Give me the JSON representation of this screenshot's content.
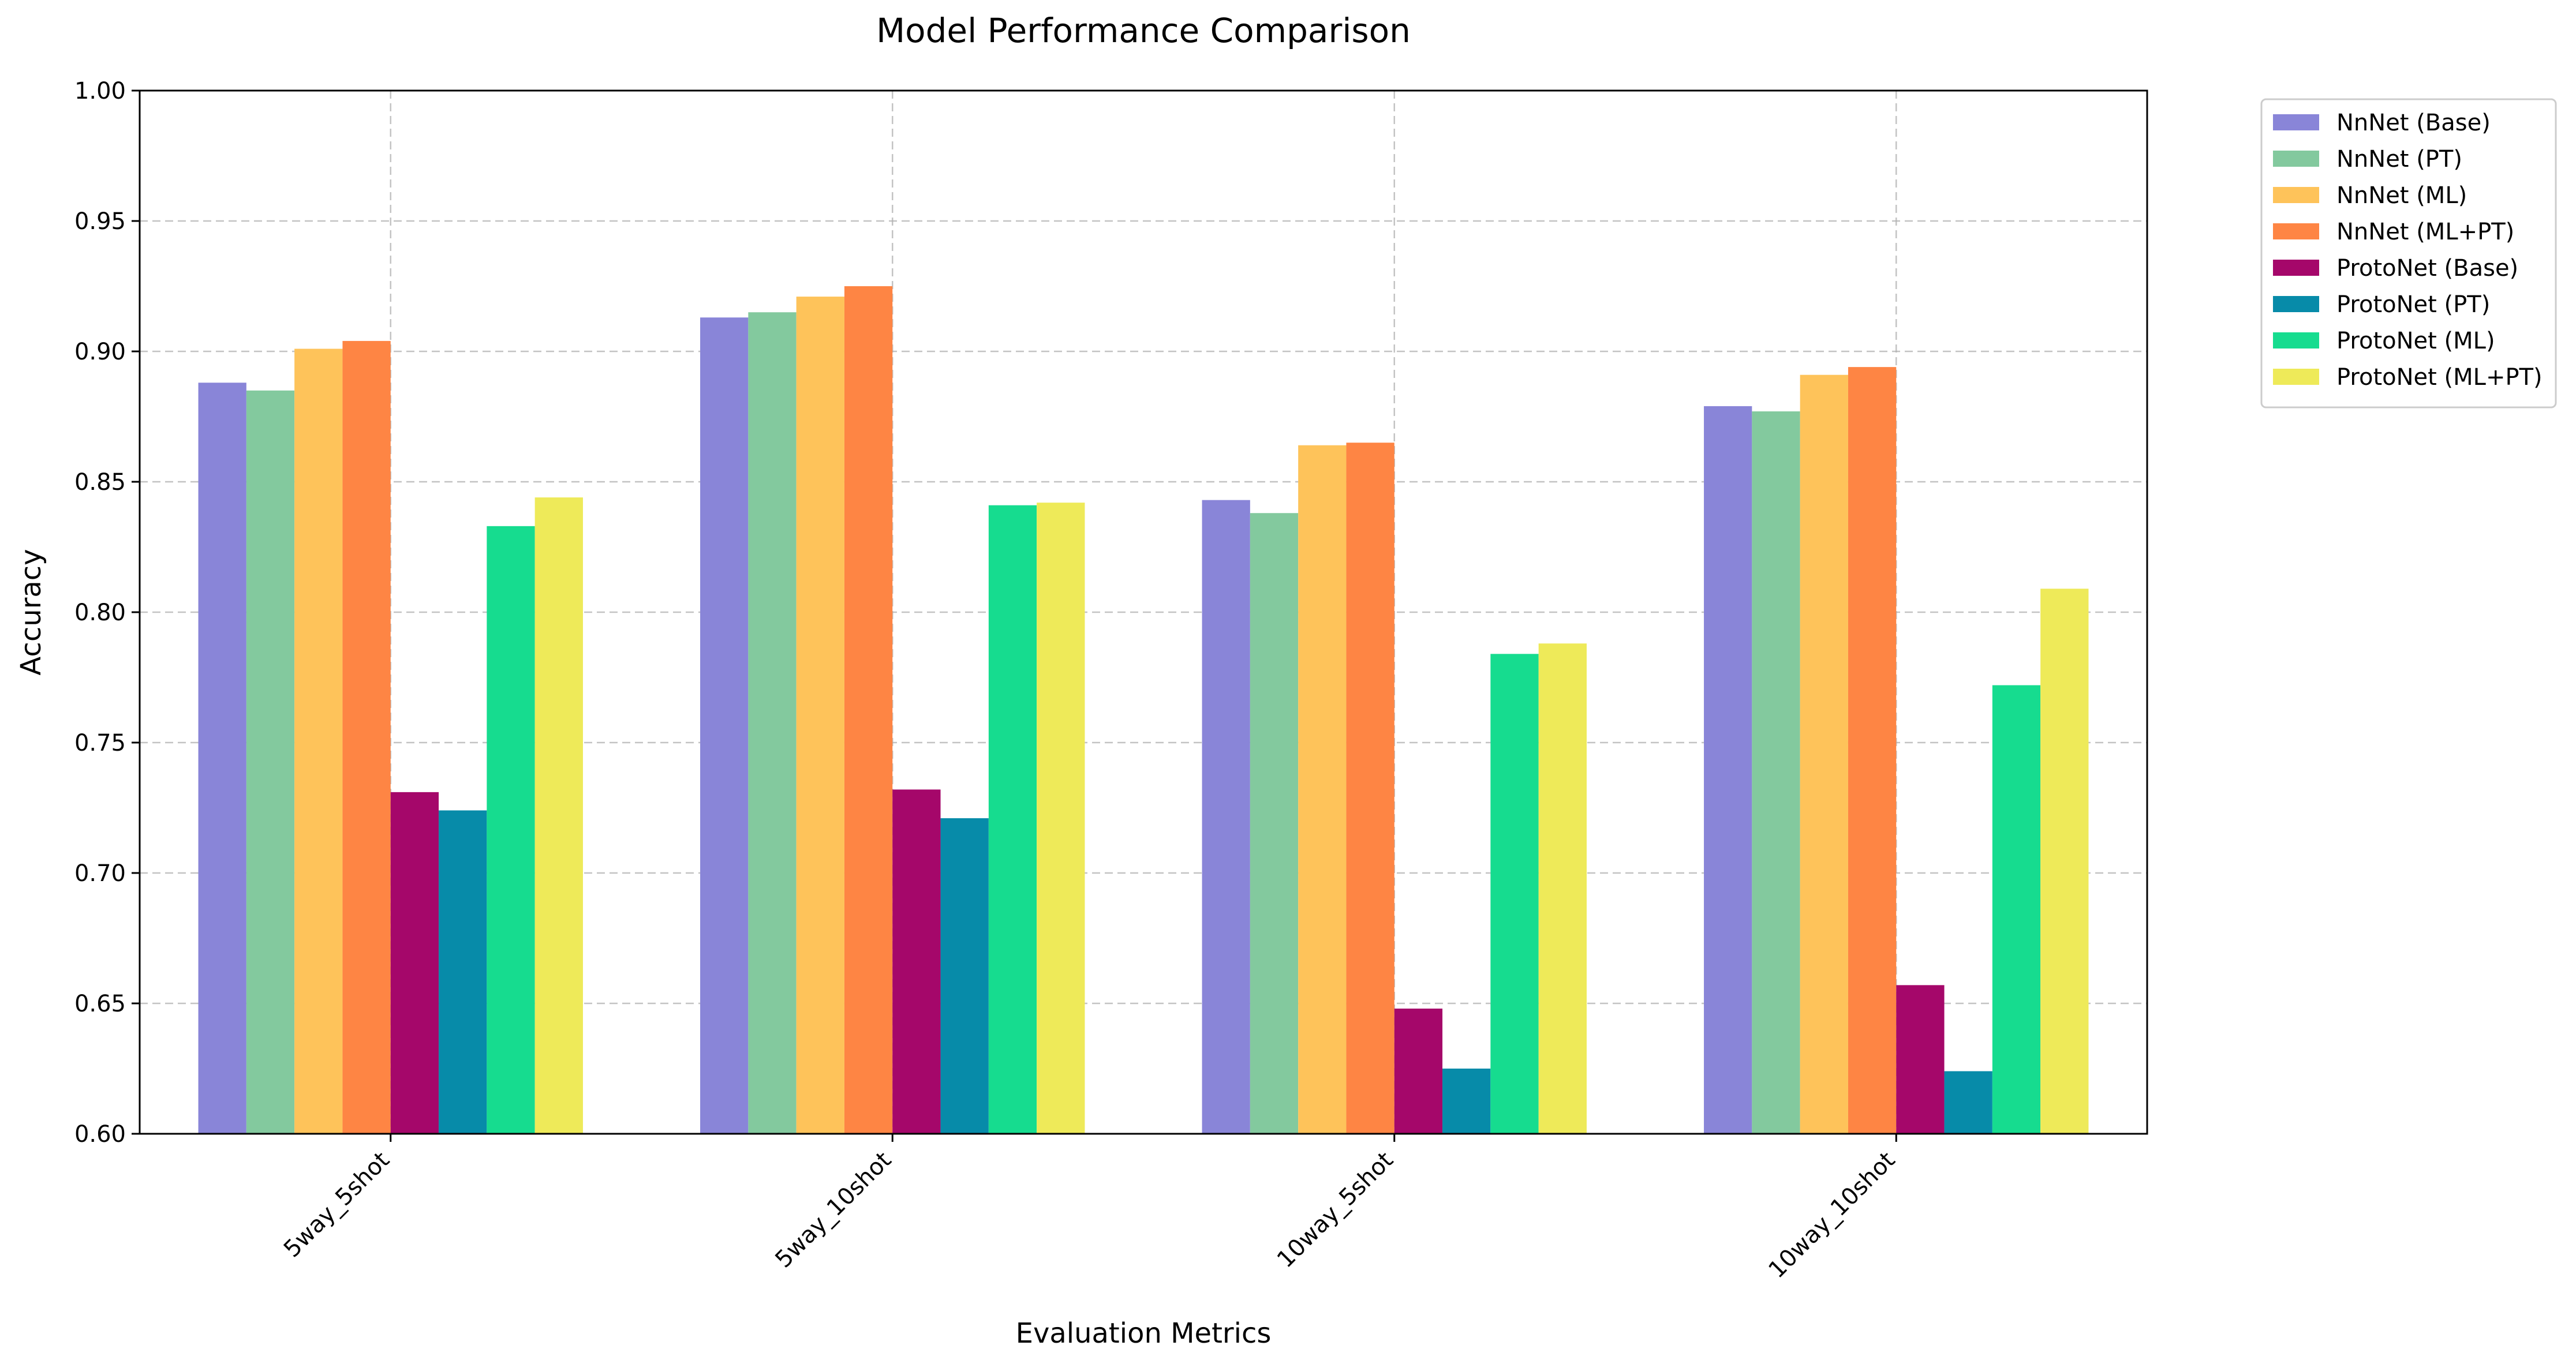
{
  "chart_data": {
    "type": "bar",
    "title": "Model Performance Comparison",
    "xlabel": "Evaluation Metrics",
    "ylabel": "Accuracy",
    "ylim": [
      0.6,
      1.0
    ],
    "yticks": [
      0.6,
      0.65,
      0.7,
      0.75,
      0.8,
      0.85,
      0.9,
      0.95,
      1.0
    ],
    "ytick_labels": [
      "0.60",
      "0.65",
      "0.70",
      "0.75",
      "0.80",
      "0.85",
      "0.90",
      "0.95",
      "1.00"
    ],
    "categories": [
      "5way_5shot",
      "5way_10shot",
      "10way_5shot",
      "10way_10shot"
    ],
    "grid": true,
    "legend_position": "outside-top-right",
    "series": [
      {
        "name": "NnNet (Base)",
        "color": "#8985d8",
        "values": [
          0.888,
          0.913,
          0.843,
          0.879
        ]
      },
      {
        "name": "NnNet (PT)",
        "color": "#83c99e",
        "values": [
          0.885,
          0.915,
          0.838,
          0.877
        ]
      },
      {
        "name": "NnNet (ML)",
        "color": "#fec35a",
        "values": [
          0.901,
          0.921,
          0.864,
          0.891
        ]
      },
      {
        "name": "NnNet (ML+PT)",
        "color": "#fe8544",
        "values": [
          0.904,
          0.925,
          0.865,
          0.894
        ]
      },
      {
        "name": "ProtoNet (Base)",
        "color": "#a5076a",
        "values": [
          0.731,
          0.732,
          0.648,
          0.657
        ]
      },
      {
        "name": "ProtoNet (PT)",
        "color": "#078ba9",
        "values": [
          0.724,
          0.721,
          0.625,
          0.624
        ]
      },
      {
        "name": "ProtoNet (ML)",
        "color": "#16dc8f",
        "values": [
          0.833,
          0.841,
          0.784,
          0.772
        ]
      },
      {
        "name": "ProtoNet (ML+PT)",
        "color": "#eeea59",
        "values": [
          0.844,
          0.842,
          0.788,
          0.809
        ]
      }
    ]
  }
}
